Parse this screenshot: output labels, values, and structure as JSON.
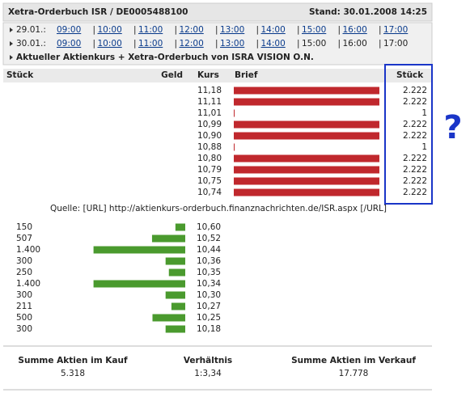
{
  "header": {
    "title": "Xetra-Orderbuch ISR / DE0005488100",
    "stand": "Stand: 30.01.2008 14:25"
  },
  "sessions": [
    {
      "date": "29.01.:",
      "links": [
        "09:00",
        "10:00",
        "11:00",
        "12:00",
        "13:00",
        "14:00",
        "15:00",
        "16:00",
        "17:00"
      ],
      "plain": []
    },
    {
      "date": "30.01.:",
      "links": [
        "09:00",
        "10:00",
        "11:00",
        "12:00",
        "13:00",
        "14:00"
      ],
      "plain": [
        "15:00",
        "16:00",
        "17:00"
      ]
    }
  ],
  "section_title": "Aktueller Aktienkurs + Xetra-Orderbuch von ISRA VISION O.N.",
  "columns": {
    "stueck_bid": "Stück",
    "geld": "Geld",
    "kurs": "Kurs",
    "brief": "Brief",
    "stueck_ask": "Stück"
  },
  "asks": [
    {
      "kurs": "11,18",
      "stueck": {
        "value": 2222,
        "label": "2.222"
      }
    },
    {
      "kurs": "11,11",
      "stueck": {
        "value": 2222,
        "label": "2.222"
      }
    },
    {
      "kurs": "11,01",
      "stueck": 1
    },
    {
      "kurs": "10,99",
      "stueck": {
        "value": 2222,
        "label": "2.222"
      }
    },
    {
      "kurs": "10,90",
      "stueck": {
        "value": 2222,
        "label": "2.222"
      }
    },
    {
      "kurs": "10,88",
      "stueck": 1
    },
    {
      "kurs": "10,80",
      "stueck": {
        "value": 2222,
        "label": "2.222"
      }
    },
    {
      "kurs": "10,79",
      "stueck": {
        "value": 2222,
        "label": "2.222"
      }
    },
    {
      "kurs": "10,75",
      "stueck": {
        "value": 2222,
        "label": "2.222"
      }
    },
    {
      "kurs": "10,74",
      "stueck": {
        "value": 2222,
        "label": "2.222"
      }
    }
  ],
  "annotation": "?",
  "source": "Quelle: [URL] http://aktienkurs-orderbuch.finanznachrichten.de/ISR.aspx [/URL]",
  "bids": [
    {
      "stueck": 150,
      "kurs": "10,60"
    },
    {
      "stueck": 507,
      "kurs": "10,52"
    },
    {
      "stueck": {
        "value": 1400,
        "label": "1.400"
      },
      "kurs": "10,44"
    },
    {
      "stueck": 300,
      "kurs": "10,36"
    },
    {
      "stueck": 250,
      "kurs": "10,35"
    },
    {
      "stueck": {
        "value": 1400,
        "label": "1.400"
      },
      "kurs": "10,34"
    },
    {
      "stueck": 300,
      "kurs": "10,30"
    },
    {
      "stueck": 211,
      "kurs": "10,27"
    },
    {
      "stueck": 500,
      "kurs": "10,25"
    },
    {
      "stueck": 300,
      "kurs": "10,18"
    }
  ],
  "summary": [
    {
      "label": "Summe Aktien im Kauf",
      "value": "5.318"
    },
    {
      "label": "Verhältnis",
      "value": "1:3,34"
    },
    {
      "label": "Summe Aktien im Verkauf",
      "value": "17.778"
    }
  ]
}
